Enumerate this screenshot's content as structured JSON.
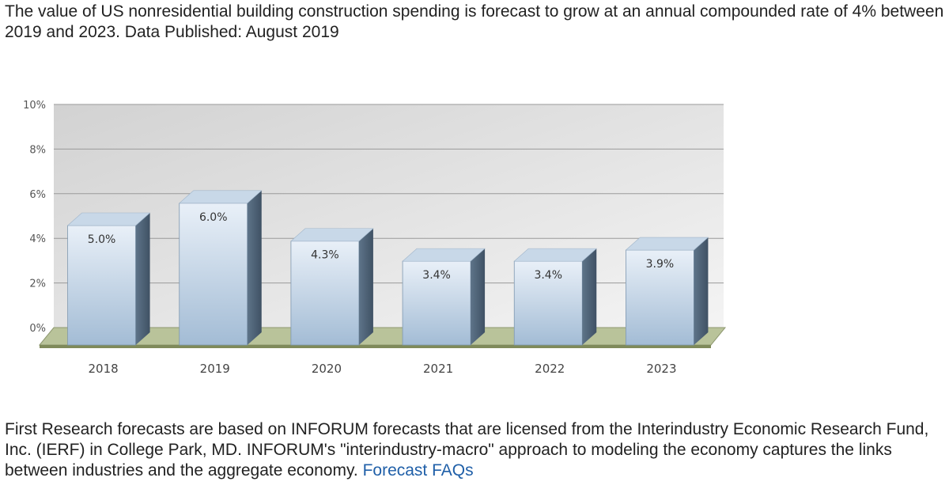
{
  "headline": "The value of US nonresidential building construction spending is forecast to grow at an annual compounded rate of 4% between 2019 and 2023. Data Published: August 2019",
  "footer": {
    "text": "First Research forecasts are based on INFORUM forecasts that are licensed from the Interindustry Economic Research Fund, Inc. (IERF) in College Park, MD. INFORUM's \"interindustry-macro\" approach to modeling the economy captures the links between industries and the aggregate economy. ",
    "link_label": "Forecast FAQs"
  },
  "colors": {
    "bar_front_top": "#e9f0f8",
    "bar_front_bottom": "#a3bcd5",
    "bar_side": "#4f6478",
    "bar_top": "#c8d8e8",
    "floor": "#b9c39a",
    "plot_bg": "#dadada",
    "link": "#1f5fa8"
  },
  "chart_data": {
    "type": "bar",
    "categories": [
      "2018",
      "2019",
      "2020",
      "2021",
      "2022",
      "2023"
    ],
    "values": [
      5.0,
      6.0,
      4.3,
      3.4,
      3.4,
      3.9
    ],
    "value_labels": [
      "5.0%",
      "6.0%",
      "4.3%",
      "3.4%",
      "3.4%",
      "3.9%"
    ],
    "y_ticks": [
      "0%",
      "2%",
      "4%",
      "6%",
      "8%",
      "10%"
    ],
    "ylim": [
      0,
      10
    ],
    "grid": true,
    "style": "3d"
  }
}
